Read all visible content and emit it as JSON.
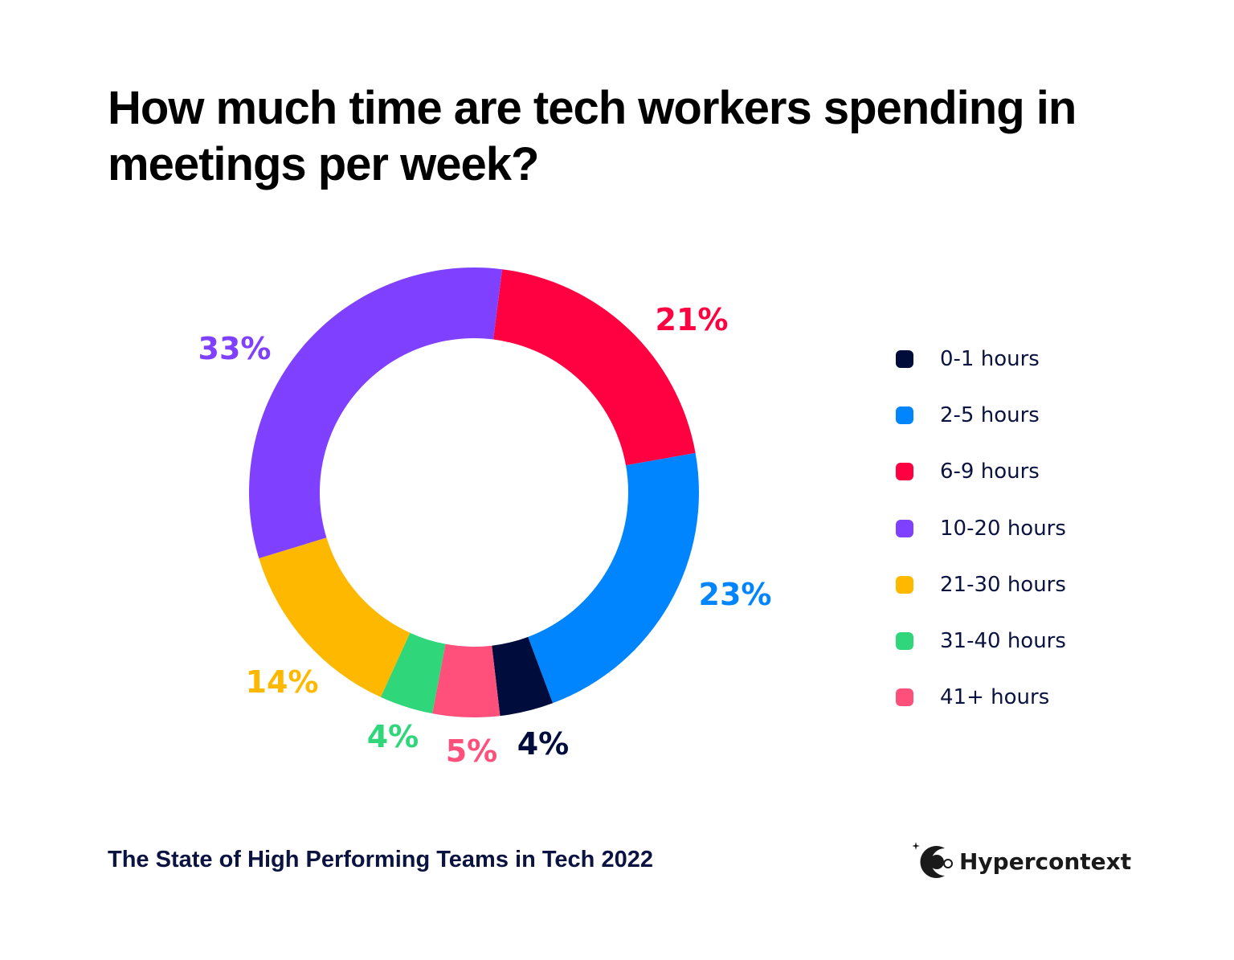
{
  "chart_data": {
    "type": "pie",
    "donut": true,
    "title": "How much time are tech workers spending in meetings per week?",
    "categories": [
      "0-1 hours",
      "2-5 hours",
      "6-9 hours",
      "10-20 hours",
      "21-30 hours",
      "31-40 hours",
      "41+ hours"
    ],
    "values": [
      4,
      23,
      21,
      33,
      14,
      4,
      5
    ],
    "labels": [
      "4%",
      "23%",
      "21%",
      "33%",
      "14%",
      "4%",
      "5%"
    ],
    "colors": [
      "#000c3b",
      "#0085ff",
      "#ff0040",
      "#8040ff",
      "#ffb800",
      "#2fd67a",
      "#ff4f7b"
    ],
    "legend_position": "right"
  },
  "footer": {
    "source": "The State of High Performing Teams in Tech 2022",
    "brand": "Hypercontext"
  }
}
